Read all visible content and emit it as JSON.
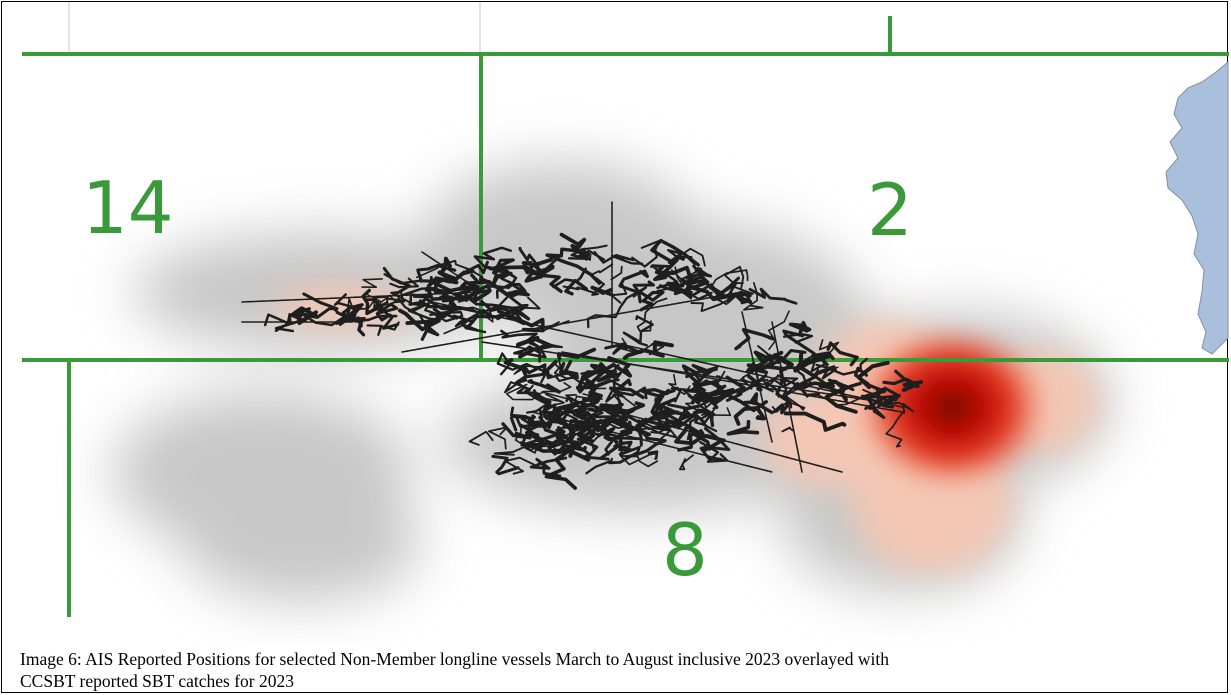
{
  "figure": {
    "caption_line1": "Image 6: AIS Reported Positions for selected Non-Member longline vessels March to August inclusive 2023 overlayed with",
    "caption_line2": "CCSBT reported SBT catches for 2023"
  },
  "map": {
    "statistical_areas": [
      {
        "id": "14",
        "label": "14"
      },
      {
        "id": "2",
        "label": "2"
      },
      {
        "id": "8",
        "label": "8"
      }
    ],
    "colors": {
      "area_boundary": "#3a9a3a",
      "area_label": "#3a9a3a",
      "land": "#a9bfdc",
      "land_outline": "#7f8fa6",
      "vessel_track": "#1e1e1e",
      "catch_heat_high": "#b30000",
      "catch_heat_low": "#f7c7b3",
      "effort_haze": "#9a9a9a"
    },
    "layers": [
      "AIS vessel tracks",
      "SBT catch density",
      "CCSBT statistical area boundaries",
      "Land"
    ]
  }
}
